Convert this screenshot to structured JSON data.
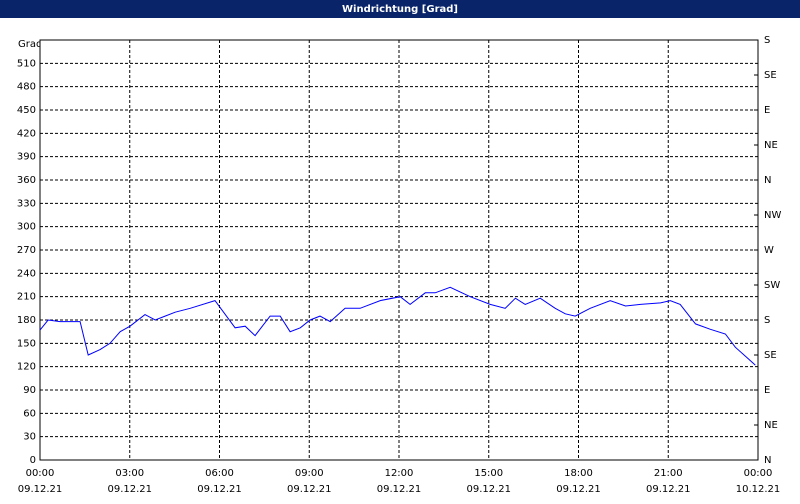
{
  "chart_data": {
    "type": "line",
    "title": "Windrichtung [Grad]",
    "y_label": "Grad",
    "x": [
      0,
      0.27,
      0.67,
      1.34,
      1.61,
      2.01,
      2.34,
      2.68,
      3.01,
      3.51,
      3.85,
      4.18,
      4.52,
      5.02,
      5.85,
      6.52,
      6.86,
      7.19,
      7.69,
      8.03,
      8.36,
      8.7,
      9.03,
      9.36,
      9.7,
      10.2,
      10.7,
      11.37,
      12.04,
      12.37,
      12.88,
      13.21,
      13.71,
      14.38,
      15.05,
      15.55,
      15.89,
      16.22,
      16.72,
      17.22,
      17.56,
      17.89,
      18.39,
      19.06,
      19.57,
      20.07,
      20.74,
      21.07,
      21.4,
      21.91,
      22.41,
      22.91,
      23.24,
      23.68,
      23.91
    ],
    "series": [
      {
        "color": "#0000ff",
        "values": [
          167,
          180,
          178,
          178,
          135,
          142,
          150,
          165,
          172,
          187,
          180,
          185,
          190,
          195,
          205,
          170,
          172,
          160,
          185,
          185,
          165,
          170,
          180,
          185,
          178,
          195,
          195,
          205,
          210,
          200,
          215,
          215,
          222,
          210,
          200,
          195,
          208,
          200,
          208,
          195,
          188,
          185,
          195,
          205,
          198,
          200,
          202,
          205,
          200,
          175,
          168,
          162,
          145,
          130,
          122
        ]
      }
    ],
    "xlim": [
      0,
      24
    ],
    "xticks": [
      {
        "value": 0,
        "label": "00:00",
        "date": "09.12.21"
      },
      {
        "value": 3,
        "label": "03:00",
        "date": "09.12.21"
      },
      {
        "value": 6,
        "label": "06:00",
        "date": "09.12.21"
      },
      {
        "value": 9,
        "label": "09:00",
        "date": "09.12.21"
      },
      {
        "value": 12,
        "label": "12:00",
        "date": "09.12.21"
      },
      {
        "value": 15,
        "label": "15:00",
        "date": "09.12.21"
      },
      {
        "value": 18,
        "label": "18:00",
        "date": "09.12.21"
      },
      {
        "value": 21,
        "label": "21:00",
        "date": "09.12.21"
      },
      {
        "value": 24,
        "label": "00:00",
        "date": "10.12.21"
      }
    ],
    "ylim": [
      0,
      540
    ],
    "yticks": [
      0,
      30,
      60,
      90,
      120,
      150,
      180,
      210,
      240,
      270,
      300,
      330,
      360,
      390,
      420,
      450,
      480,
      510
    ],
    "y2lim": [
      0,
      540
    ],
    "y2ticks": [
      {
        "value": 0,
        "label": "N"
      },
      {
        "value": 45,
        "label": "NE"
      },
      {
        "value": 90,
        "label": "E"
      },
      {
        "value": 135,
        "label": "SE"
      },
      {
        "value": 180,
        "label": "S"
      },
      {
        "value": 225,
        "label": "SW"
      },
      {
        "value": 270,
        "label": "W"
      },
      {
        "value": 315,
        "label": "NW"
      },
      {
        "value": 360,
        "label": "N"
      },
      {
        "value": 405,
        "label": "NE"
      },
      {
        "value": 450,
        "label": "E"
      },
      {
        "value": 495,
        "label": "SE"
      },
      {
        "value": 540,
        "label": "S"
      }
    ],
    "grid": true
  }
}
